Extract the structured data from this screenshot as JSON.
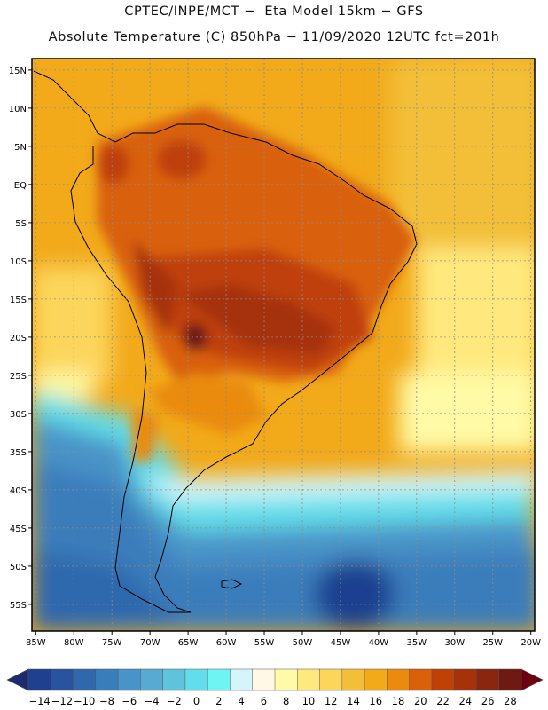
{
  "header": {
    "line1": "CPTEC/INPE/MCT −  Eta Model 15km − GFS",
    "line2": "Absolute Temperature (C) 850hPa − 11/09/2020 12UTC fct=201h"
  },
  "map": {
    "lat_labels": [
      "15N",
      "10N",
      "5N",
      "EQ",
      "5S",
      "10S",
      "15S",
      "20S",
      "25S",
      "30S",
      "35S",
      "40S",
      "45S",
      "50S",
      "55S"
    ],
    "lat_values": [
      15,
      10,
      5,
      0,
      -5,
      -10,
      -15,
      -20,
      -25,
      -30,
      -35,
      -40,
      -45,
      -50,
      -55
    ],
    "lon_labels": [
      "85W",
      "80W",
      "75W",
      "70W",
      "65W",
      "60W",
      "55W",
      "50W",
      "45W",
      "40W",
      "35W",
      "30W",
      "25W",
      "20W"
    ],
    "lon_values": [
      -85,
      -80,
      -75,
      -70,
      -65,
      -60,
      -55,
      -50,
      -45,
      -40,
      -35,
      -30,
      -25,
      -20
    ],
    "extent": {
      "lon_min": -85.5,
      "lon_max": -19.5,
      "lat_min": -58.5,
      "lat_max": 16.5
    }
  },
  "legend": {
    "ticks": [
      "−14",
      "−12",
      "−10",
      "−8",
      "−6",
      "−4",
      "−2",
      "0",
      "2",
      "4",
      "6",
      "8",
      "10",
      "12",
      "14",
      "16",
      "18",
      "20",
      "22",
      "24",
      "26",
      "28"
    ],
    "colors": [
      "#1f3f8f",
      "#28549f",
      "#2f68ad",
      "#3a7dbb",
      "#4a93c8",
      "#58aad2",
      "#5ec4dd",
      "#63dde9",
      "#6ef5f3",
      "#d4f6fb",
      "#fff8e6",
      "#fffaa6",
      "#ffe97e",
      "#fcd65b",
      "#f3bf38",
      "#f2a91a",
      "#ea8b0f",
      "#d9610a",
      "#bf4108",
      "#a6320a",
      "#8a2510",
      "#6e1a12"
    ],
    "low_arrow_color": "#1c2b6f",
    "high_arrow_color": "#6b0010"
  }
}
